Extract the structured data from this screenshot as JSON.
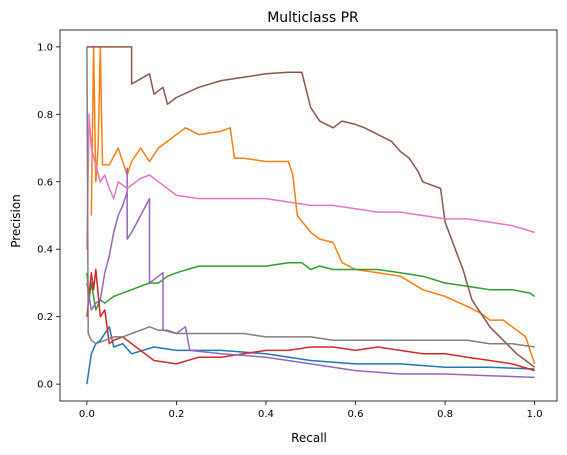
{
  "chart_data": {
    "type": "line",
    "title": "Multiclass PR",
    "xlabel": "Recall",
    "ylabel": "Precision",
    "xlim": [
      -0.06,
      1.05
    ],
    "ylim": [
      -0.05,
      1.05
    ],
    "xticks": [
      0.0,
      0.2,
      0.4,
      0.6,
      0.8,
      1.0
    ],
    "xtick_labels": [
      "0.0",
      "0.2",
      "0.4",
      "0.6",
      "0.8",
      "1.0"
    ],
    "yticks": [
      0.0,
      0.2,
      0.4,
      0.6,
      0.8,
      1.0
    ],
    "ytick_labels": [
      "0.0",
      "0.2",
      "0.4",
      "0.6",
      "0.8",
      "1.0"
    ],
    "grid": false,
    "legend": "none",
    "series": [
      {
        "color": "#1f77b4",
        "points": [
          [
            0.0,
            0.0
          ],
          [
            0.01,
            0.09
          ],
          [
            0.02,
            0.12
          ],
          [
            0.03,
            0.13
          ],
          [
            0.04,
            0.15
          ],
          [
            0.05,
            0.17
          ],
          [
            0.06,
            0.11
          ],
          [
            0.08,
            0.12
          ],
          [
            0.1,
            0.09
          ],
          [
            0.15,
            0.11
          ],
          [
            0.2,
            0.1
          ],
          [
            0.3,
            0.1
          ],
          [
            0.4,
            0.09
          ],
          [
            0.5,
            0.07
          ],
          [
            0.6,
            0.06
          ],
          [
            0.7,
            0.06
          ],
          [
            0.8,
            0.05
          ],
          [
            0.9,
            0.05
          ],
          [
            1.0,
            0.045
          ]
        ]
      },
      {
        "color": "#ff7f0e",
        "points": [
          [
            0.01,
            0.5
          ],
          [
            0.015,
            1.0
          ],
          [
            0.02,
            0.6
          ],
          [
            0.025,
            0.7
          ],
          [
            0.03,
            1.0
          ],
          [
            0.035,
            0.65
          ],
          [
            0.05,
            0.65
          ],
          [
            0.07,
            0.7
          ],
          [
            0.09,
            0.62
          ],
          [
            0.1,
            0.66
          ],
          [
            0.12,
            0.7
          ],
          [
            0.14,
            0.66
          ],
          [
            0.16,
            0.7
          ],
          [
            0.2,
            0.74
          ],
          [
            0.22,
            0.76
          ],
          [
            0.25,
            0.74
          ],
          [
            0.3,
            0.75
          ],
          [
            0.32,
            0.76
          ],
          [
            0.33,
            0.67
          ],
          [
            0.35,
            0.67
          ],
          [
            0.4,
            0.66
          ],
          [
            0.45,
            0.66
          ],
          [
            0.46,
            0.62
          ],
          [
            0.47,
            0.5
          ],
          [
            0.5,
            0.45
          ],
          [
            0.52,
            0.43
          ],
          [
            0.55,
            0.42
          ],
          [
            0.57,
            0.36
          ],
          [
            0.6,
            0.34
          ],
          [
            0.65,
            0.33
          ],
          [
            0.7,
            0.32
          ],
          [
            0.75,
            0.28
          ],
          [
            0.8,
            0.26
          ],
          [
            0.85,
            0.23
          ],
          [
            0.88,
            0.21
          ],
          [
            0.9,
            0.19
          ],
          [
            0.93,
            0.19
          ],
          [
            0.96,
            0.16
          ],
          [
            0.98,
            0.14
          ],
          [
            0.99,
            0.1
          ],
          [
            1.0,
            0.06
          ]
        ]
      },
      {
        "color": "#2ca02c",
        "points": [
          [
            0.0,
            0.33
          ],
          [
            0.005,
            0.25
          ],
          [
            0.01,
            0.3
          ],
          [
            0.02,
            0.22
          ],
          [
            0.03,
            0.25
          ],
          [
            0.04,
            0.24
          ],
          [
            0.06,
            0.26
          ],
          [
            0.08,
            0.27
          ],
          [
            0.1,
            0.28
          ],
          [
            0.12,
            0.29
          ],
          [
            0.14,
            0.3
          ],
          [
            0.16,
            0.3
          ],
          [
            0.18,
            0.32
          ],
          [
            0.2,
            0.33
          ],
          [
            0.25,
            0.35
          ],
          [
            0.3,
            0.35
          ],
          [
            0.35,
            0.35
          ],
          [
            0.4,
            0.35
          ],
          [
            0.45,
            0.36
          ],
          [
            0.48,
            0.36
          ],
          [
            0.5,
            0.34
          ],
          [
            0.52,
            0.35
          ],
          [
            0.55,
            0.34
          ],
          [
            0.6,
            0.34
          ],
          [
            0.65,
            0.34
          ],
          [
            0.7,
            0.33
          ],
          [
            0.75,
            0.32
          ],
          [
            0.8,
            0.3
          ],
          [
            0.85,
            0.29
          ],
          [
            0.9,
            0.28
          ],
          [
            0.95,
            0.28
          ],
          [
            0.99,
            0.27
          ],
          [
            1.0,
            0.26
          ]
        ]
      },
      {
        "color": "#d62728",
        "points": [
          [
            0.0,
            0.2
          ],
          [
            0.01,
            0.33
          ],
          [
            0.015,
            0.28
          ],
          [
            0.02,
            0.34
          ],
          [
            0.025,
            0.27
          ],
          [
            0.03,
            0.2
          ],
          [
            0.04,
            0.22
          ],
          [
            0.05,
            0.12
          ],
          [
            0.06,
            0.13
          ],
          [
            0.08,
            0.14
          ],
          [
            0.1,
            0.12
          ],
          [
            0.15,
            0.07
          ],
          [
            0.2,
            0.06
          ],
          [
            0.25,
            0.08
          ],
          [
            0.3,
            0.08
          ],
          [
            0.35,
            0.09
          ],
          [
            0.4,
            0.1
          ],
          [
            0.45,
            0.1
          ],
          [
            0.5,
            0.11
          ],
          [
            0.55,
            0.11
          ],
          [
            0.6,
            0.1
          ],
          [
            0.65,
            0.11
          ],
          [
            0.7,
            0.1
          ],
          [
            0.75,
            0.09
          ],
          [
            0.8,
            0.09
          ],
          [
            0.85,
            0.08
          ],
          [
            0.9,
            0.07
          ],
          [
            0.95,
            0.06
          ],
          [
            1.0,
            0.04
          ]
        ]
      },
      {
        "color": "#9467bd",
        "points": [
          [
            0.0,
            0.3
          ],
          [
            0.01,
            0.22
          ],
          [
            0.02,
            0.24
          ],
          [
            0.03,
            0.25
          ],
          [
            0.04,
            0.33
          ],
          [
            0.05,
            0.38
          ],
          [
            0.06,
            0.45
          ],
          [
            0.07,
            0.5
          ],
          [
            0.08,
            0.53
          ],
          [
            0.09,
            0.57
          ],
          [
            0.09,
            0.64
          ],
          [
            0.09,
            0.43
          ],
          [
            0.1,
            0.45
          ],
          [
            0.12,
            0.5
          ],
          [
            0.14,
            0.55
          ],
          [
            0.14,
            0.3
          ],
          [
            0.16,
            0.32
          ],
          [
            0.17,
            0.33
          ],
          [
            0.17,
            0.16
          ],
          [
            0.2,
            0.15
          ],
          [
            0.22,
            0.17
          ],
          [
            0.23,
            0.1
          ],
          [
            0.3,
            0.09
          ],
          [
            0.4,
            0.08
          ],
          [
            0.5,
            0.06
          ],
          [
            0.6,
            0.04
          ],
          [
            0.7,
            0.03
          ],
          [
            0.8,
            0.03
          ],
          [
            0.9,
            0.025
          ],
          [
            1.0,
            0.02
          ]
        ]
      },
      {
        "color": "#8c564b",
        "points": [
          [
            0.0,
            1.0
          ],
          [
            0.1,
            1.0
          ],
          [
            0.1,
            0.89
          ],
          [
            0.14,
            0.92
          ],
          [
            0.15,
            0.86
          ],
          [
            0.17,
            0.88
          ],
          [
            0.18,
            0.83
          ],
          [
            0.2,
            0.85
          ],
          [
            0.25,
            0.88
          ],
          [
            0.3,
            0.9
          ],
          [
            0.35,
            0.91
          ],
          [
            0.4,
            0.92
          ],
          [
            0.45,
            0.925
          ],
          [
            0.48,
            0.925
          ],
          [
            0.5,
            0.82
          ],
          [
            0.52,
            0.78
          ],
          [
            0.55,
            0.76
          ],
          [
            0.57,
            0.78
          ],
          [
            0.6,
            0.77
          ],
          [
            0.62,
            0.76
          ],
          [
            0.65,
            0.74
          ],
          [
            0.68,
            0.72
          ],
          [
            0.7,
            0.69
          ],
          [
            0.72,
            0.67
          ],
          [
            0.74,
            0.63
          ],
          [
            0.75,
            0.6
          ],
          [
            0.77,
            0.59
          ],
          [
            0.79,
            0.58
          ],
          [
            0.8,
            0.48
          ],
          [
            0.82,
            0.41
          ],
          [
            0.84,
            0.34
          ],
          [
            0.86,
            0.25
          ],
          [
            0.88,
            0.21
          ],
          [
            0.9,
            0.17
          ],
          [
            0.93,
            0.13
          ],
          [
            0.96,
            0.09
          ],
          [
            0.98,
            0.07
          ],
          [
            1.0,
            0.05
          ]
        ]
      },
      {
        "color": "#e377c2",
        "points": [
          [
            0.0,
            0.4
          ],
          [
            0.005,
            0.8
          ],
          [
            0.01,
            0.7
          ],
          [
            0.02,
            0.65
          ],
          [
            0.03,
            0.6
          ],
          [
            0.04,
            0.62
          ],
          [
            0.05,
            0.58
          ],
          [
            0.06,
            0.55
          ],
          [
            0.07,
            0.6
          ],
          [
            0.08,
            0.59
          ],
          [
            0.09,
            0.58
          ],
          [
            0.1,
            0.59
          ],
          [
            0.12,
            0.61
          ],
          [
            0.14,
            0.62
          ],
          [
            0.16,
            0.6
          ],
          [
            0.18,
            0.58
          ],
          [
            0.2,
            0.56
          ],
          [
            0.25,
            0.55
          ],
          [
            0.3,
            0.55
          ],
          [
            0.35,
            0.55
          ],
          [
            0.4,
            0.55
          ],
          [
            0.45,
            0.54
          ],
          [
            0.5,
            0.53
          ],
          [
            0.55,
            0.53
          ],
          [
            0.6,
            0.52
          ],
          [
            0.65,
            0.51
          ],
          [
            0.7,
            0.51
          ],
          [
            0.75,
            0.5
          ],
          [
            0.8,
            0.49
          ],
          [
            0.85,
            0.49
          ],
          [
            0.9,
            0.48
          ],
          [
            0.95,
            0.47
          ],
          [
            1.0,
            0.45
          ]
        ]
      },
      {
        "color": "#7f7f7f",
        "points": [
          [
            0.0,
            1.0
          ],
          [
            0.003,
            0.15
          ],
          [
            0.01,
            0.13
          ],
          [
            0.02,
            0.12
          ],
          [
            0.04,
            0.13
          ],
          [
            0.06,
            0.14
          ],
          [
            0.08,
            0.14
          ],
          [
            0.1,
            0.15
          ],
          [
            0.12,
            0.16
          ],
          [
            0.14,
            0.17
          ],
          [
            0.16,
            0.16
          ],
          [
            0.18,
            0.16
          ],
          [
            0.2,
            0.15
          ],
          [
            0.25,
            0.15
          ],
          [
            0.3,
            0.15
          ],
          [
            0.35,
            0.15
          ],
          [
            0.4,
            0.14
          ],
          [
            0.45,
            0.14
          ],
          [
            0.5,
            0.14
          ],
          [
            0.55,
            0.13
          ],
          [
            0.6,
            0.13
          ],
          [
            0.65,
            0.13
          ],
          [
            0.7,
            0.13
          ],
          [
            0.75,
            0.13
          ],
          [
            0.8,
            0.13
          ],
          [
            0.85,
            0.13
          ],
          [
            0.9,
            0.12
          ],
          [
            0.95,
            0.12
          ],
          [
            1.0,
            0.11
          ]
        ]
      }
    ]
  }
}
